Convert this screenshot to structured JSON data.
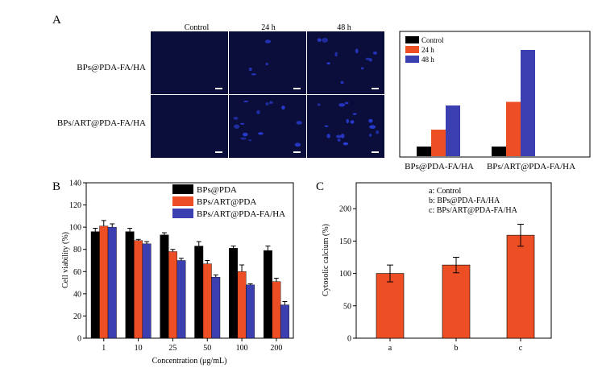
{
  "colors": {
    "control": "#000000",
    "h24": "#ee4e24",
    "h48": "#3b3fb0",
    "micro_bg": "#0b0e3a",
    "cell": "#2a3cd6",
    "scale": "#ffffff"
  },
  "panel_a": {
    "label": "A",
    "column_headers": [
      "Control",
      "24 h",
      "48 h"
    ],
    "row_labels": [
      "BPs@PDA-FA/HA",
      "BPs/ART@PDA-FA/HA"
    ],
    "cells_per_image": [
      [
        0,
        4,
        10
      ],
      [
        0,
        14,
        16
      ]
    ]
  },
  "chart_data": [
    {
      "id": "A-inset",
      "type": "bar",
      "title": "",
      "xlabel": "",
      "ylabel": "",
      "categories": [
        "BPs@PDA-FA/HA",
        "BPs/ART@PDA-FA/HA"
      ],
      "series": [
        {
          "name": "Control",
          "color": "#000000",
          "values": [
            8,
            8
          ]
        },
        {
          "name": "24 h",
          "color": "#ee4e24",
          "values": [
            22,
            45
          ]
        },
        {
          "name": "48 h",
          "color": "#3b3fb0",
          "values": [
            42,
            88
          ]
        }
      ],
      "ylim": [
        0,
        100
      ],
      "legend": "top-left"
    },
    {
      "id": "B",
      "panel_label": "B",
      "type": "bar",
      "title": "",
      "xlabel": "Concentration (μg/mL)",
      "ylabel": "Cell viability (%)",
      "categories": [
        "1",
        "10",
        "25",
        "50",
        "100",
        "200"
      ],
      "series": [
        {
          "name": "BPs@PDA",
          "color": "#000000",
          "values": [
            96,
            96,
            93,
            83,
            81,
            79
          ],
          "errors": [
            3,
            3,
            2,
            4,
            2,
            4
          ]
        },
        {
          "name": "BPs/ART@PDA",
          "color": "#ee4e24",
          "values": [
            101,
            88,
            78,
            67,
            60,
            51
          ],
          "errors": [
            5,
            1,
            2,
            3,
            6,
            3
          ]
        },
        {
          "name": "BPs/ART@PDA-FA/HA",
          "color": "#3b3fb0",
          "values": [
            100,
            85,
            70,
            55,
            48,
            30
          ],
          "errors": [
            3,
            2,
            2,
            2,
            1,
            3
          ]
        }
      ],
      "yticks": [
        0,
        20,
        40,
        60,
        80,
        100,
        120,
        140
      ],
      "ylim": [
        0,
        140
      ],
      "legend": "top-right"
    },
    {
      "id": "C",
      "panel_label": "C",
      "type": "bar",
      "title": "",
      "xlabel": "",
      "ylabel": "Cytosolic calcium (%)",
      "categories": [
        "a",
        "b",
        "c"
      ],
      "values": [
        100,
        113,
        159
      ],
      "errors": [
        13,
        12,
        17
      ],
      "color": "#ee4e24",
      "yticks": [
        0,
        50,
        100,
        150,
        200
      ],
      "ylim": [
        0,
        240
      ],
      "legend": "top-right",
      "legend_entries": [
        "a: Control",
        "b: BPs@PDA-FA/HA",
        "c: BPs/ART@PDA-FA/HA"
      ]
    }
  ]
}
